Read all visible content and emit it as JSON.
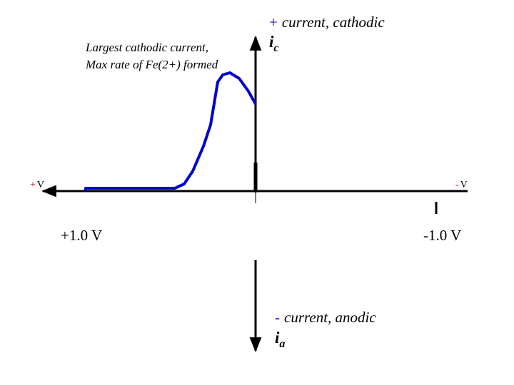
{
  "annotation": {
    "lines": [
      "Largest cathodic current,",
      "Max rate of Fe(2+) formed"
    ]
  },
  "y_axis": {
    "top": {
      "sign": "+",
      "label": "current, cathodic",
      "symbol": "i",
      "subscript": "c"
    },
    "bottom": {
      "sign": "-",
      "label": "current, anodic",
      "symbol": "i",
      "subscript": "a"
    }
  },
  "x_axis": {
    "left": {
      "sign": "+",
      "unit": "V"
    },
    "right": {
      "sign": "-",
      "unit": "V"
    },
    "ticks": [
      "+1.0 V",
      "-1.0 V"
    ]
  }
}
